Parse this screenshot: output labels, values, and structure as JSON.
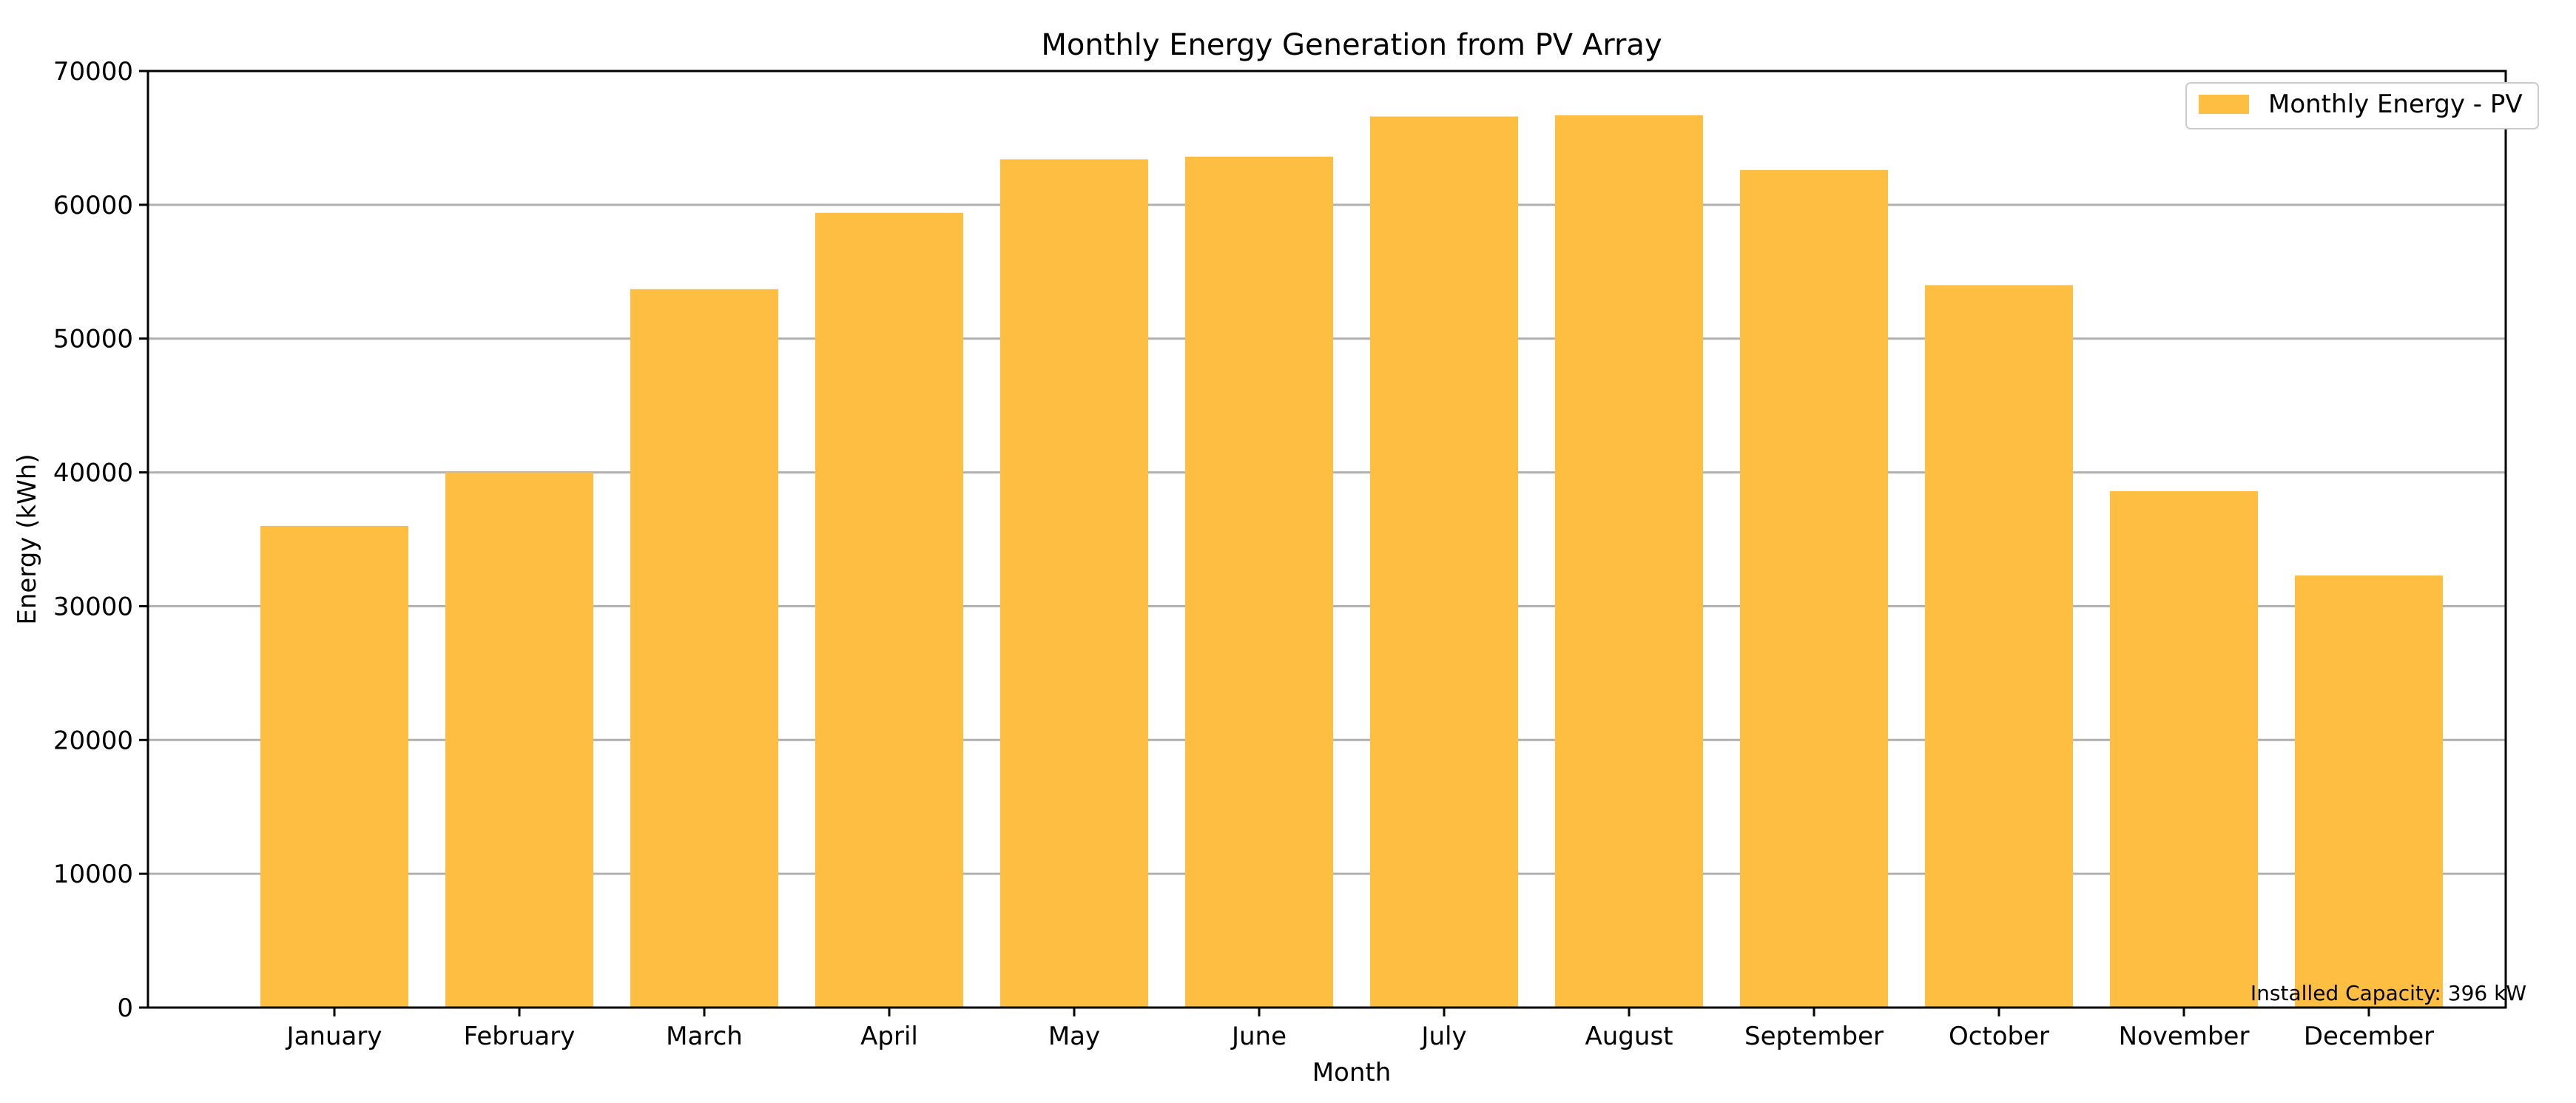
{
  "chart_data": {
    "type": "bar",
    "title": "Monthly Energy Generation from PV Array",
    "xlabel": "Month",
    "ylabel": "Energy (kWh)",
    "categories": [
      "January",
      "February",
      "March",
      "April",
      "May",
      "June",
      "July",
      "August",
      "September",
      "October",
      "November",
      "December"
    ],
    "series": [
      {
        "name": "Monthly Energy - PV",
        "values": [
          36000,
          40000,
          53700,
          59400,
          63400,
          63600,
          66600,
          66700,
          62600,
          54000,
          38600,
          32300
        ]
      }
    ],
    "ylim": [
      0,
      70000
    ],
    "yticks": [
      "0",
      "10000",
      "20000",
      "30000",
      "40000",
      "50000",
      "60000",
      "70000"
    ],
    "grid": "horizontal",
    "legend_position": "top-right",
    "annotation": "Installed Capacity: 396 kW",
    "bar_color": "#fdbe42",
    "grid_color": "#b0b0b0"
  }
}
